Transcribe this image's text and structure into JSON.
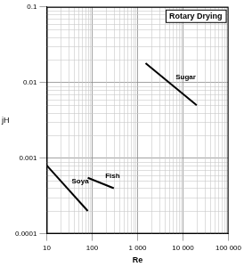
{
  "chart_data": {
    "type": "line",
    "title": "Rotary Drying",
    "xlabel": "Re",
    "ylabel": "jH",
    "log": true,
    "grid": true,
    "xlim": [
      10,
      100000
    ],
    "xticks": [
      10,
      100,
      {
        "value": 1000,
        "label": "1 000"
      },
      {
        "value": 10000,
        "label": "10 000"
      },
      {
        "value": 100000,
        "label": "100 000"
      }
    ],
    "ylim": [
      0.0001,
      0.1
    ],
    "yticks": [
      0.0001,
      0.001,
      0.01,
      0.1
    ],
    "series": [
      {
        "name": "Soya",
        "color": "#000000",
        "x": [
          10,
          80
        ],
        "values": [
          0.0008,
          0.0002
        ]
      },
      {
        "name": "Fish",
        "color": "#000000",
        "x": [
          80,
          300
        ],
        "values": [
          0.00055,
          0.0004
        ]
      },
      {
        "name": "Sugar",
        "color": "#000000",
        "x": [
          1500,
          20000
        ],
        "values": [
          0.018,
          0.005
        ]
      }
    ]
  }
}
